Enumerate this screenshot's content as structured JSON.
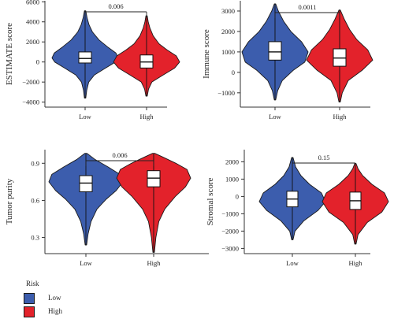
{
  "legend": {
    "title": "Risk",
    "items": [
      {
        "label": "Low",
        "color": "#3c5dad"
      },
      {
        "label": "High",
        "color": "#e3222b"
      }
    ]
  },
  "chart_data": [
    {
      "type": "violin",
      "ylabel": "ESTIMATE score",
      "categories": [
        "Low",
        "High"
      ],
      "yticks": [
        -4000,
        -2000,
        0,
        2000,
        4000,
        6000
      ],
      "ylim": [
        -4500,
        6100
      ],
      "pvalue": "0.006",
      "series": [
        {
          "name": "Low",
          "color": "#3c5dad",
          "min": -3600,
          "max": 5100,
          "q1": -100,
          "median": 350,
          "q3": 1000,
          "profile": [
            [
              -3600,
              0.02
            ],
            [
              -2800,
              0.05
            ],
            [
              -2000,
              0.11
            ],
            [
              -1300,
              0.28
            ],
            [
              -600,
              0.62
            ],
            [
              0,
              0.92
            ],
            [
              400,
              1.0
            ],
            [
              900,
              0.93
            ],
            [
              1500,
              0.68
            ],
            [
              2200,
              0.42
            ],
            [
              3000,
              0.22
            ],
            [
              3700,
              0.12
            ],
            [
              4400,
              0.06
            ],
            [
              5100,
              0.02
            ]
          ]
        },
        {
          "name": "High",
          "color": "#e3222b",
          "min": -3400,
          "max": 4600,
          "q1": -600,
          "median": 0,
          "q3": 700,
          "profile": [
            [
              -3400,
              0.02
            ],
            [
              -2700,
              0.06
            ],
            [
              -2000,
              0.16
            ],
            [
              -1300,
              0.5
            ],
            [
              -600,
              0.85
            ],
            [
              0,
              1.0
            ],
            [
              600,
              0.9
            ],
            [
              1200,
              0.62
            ],
            [
              1800,
              0.38
            ],
            [
              2600,
              0.2
            ],
            [
              3400,
              0.1
            ],
            [
              4000,
              0.05
            ],
            [
              4600,
              0.02
            ]
          ]
        }
      ]
    },
    {
      "type": "violin",
      "ylabel": "Immune score",
      "categories": [
        "Low",
        "High"
      ],
      "yticks": [
        -1000,
        0,
        1000,
        2000,
        3000
      ],
      "ylim": [
        -1700,
        3500
      ],
      "pvalue": "0.0011",
      "series": [
        {
          "name": "Low",
          "color": "#3c5dad",
          "min": -1350,
          "max": 3350,
          "q1": 600,
          "median": 1000,
          "q3": 1500,
          "profile": [
            [
              -1350,
              0.02
            ],
            [
              -900,
              0.08
            ],
            [
              -400,
              0.22
            ],
            [
              100,
              0.55
            ],
            [
              500,
              0.9
            ],
            [
              1000,
              1.0
            ],
            [
              1500,
              0.8
            ],
            [
              2000,
              0.48
            ],
            [
              2500,
              0.26
            ],
            [
              3000,
              0.1
            ],
            [
              3350,
              0.02
            ]
          ]
        },
        {
          "name": "High",
          "color": "#e3222b",
          "min": -1450,
          "max": 3050,
          "q1": 300,
          "median": 700,
          "q3": 1150,
          "profile": [
            [
              -1450,
              0.02
            ],
            [
              -1000,
              0.08
            ],
            [
              -400,
              0.26
            ],
            [
              100,
              0.68
            ],
            [
              600,
              1.0
            ],
            [
              1100,
              0.85
            ],
            [
              1600,
              0.52
            ],
            [
              2100,
              0.3
            ],
            [
              2600,
              0.14
            ],
            [
              3050,
              0.02
            ]
          ]
        }
      ]
    },
    {
      "type": "violin",
      "ylabel": "Tumor purity",
      "categories": [
        "Low",
        "High"
      ],
      "yticks": [
        0.3,
        0.6,
        0.9
      ],
      "ylim": [
        0.17,
        1.01
      ],
      "pvalue": "0.006",
      "series": [
        {
          "name": "Low",
          "color": "#3c5dad",
          "min": 0.24,
          "max": 0.98,
          "q1": 0.67,
          "median": 0.74,
          "q3": 0.8,
          "profile": [
            [
              0.24,
              0.02
            ],
            [
              0.33,
              0.06
            ],
            [
              0.43,
              0.14
            ],
            [
              0.53,
              0.3
            ],
            [
              0.61,
              0.55
            ],
            [
              0.68,
              0.82
            ],
            [
              0.75,
              1.0
            ],
            [
              0.81,
              0.92
            ],
            [
              0.87,
              0.6
            ],
            [
              0.93,
              0.25
            ],
            [
              0.98,
              0.03
            ]
          ]
        },
        {
          "name": "High",
          "color": "#e3222b",
          "min": 0.18,
          "max": 0.98,
          "q1": 0.71,
          "median": 0.78,
          "q3": 0.84,
          "profile": [
            [
              0.18,
              0.02
            ],
            [
              0.3,
              0.06
            ],
            [
              0.43,
              0.14
            ],
            [
              0.53,
              0.3
            ],
            [
              0.63,
              0.58
            ],
            [
              0.71,
              0.86
            ],
            [
              0.78,
              1.0
            ],
            [
              0.85,
              0.9
            ],
            [
              0.9,
              0.6
            ],
            [
              0.95,
              0.25
            ],
            [
              0.98,
              0.03
            ]
          ]
        }
      ]
    },
    {
      "type": "violin",
      "ylabel": "Stromal score",
      "categories": [
        "Low",
        "High"
      ],
      "yticks": [
        -3000,
        -2000,
        -1000,
        0,
        1000,
        2000
      ],
      "ylim": [
        -3300,
        2700
      ],
      "pvalue": "0.15",
      "series": [
        {
          "name": "Low",
          "color": "#3c5dad",
          "min": -2500,
          "max": 2250,
          "q1": -600,
          "median": -150,
          "q3": 300,
          "profile": [
            [
              -2500,
              0.02
            ],
            [
              -2000,
              0.08
            ],
            [
              -1400,
              0.35
            ],
            [
              -800,
              0.78
            ],
            [
              -300,
              1.0
            ],
            [
              200,
              0.88
            ],
            [
              700,
              0.52
            ],
            [
              1200,
              0.26
            ],
            [
              1700,
              0.1
            ],
            [
              2250,
              0.02
            ]
          ]
        },
        {
          "name": "High",
          "color": "#e3222b",
          "min": -2750,
          "max": 1900,
          "q1": -750,
          "median": -250,
          "q3": 250,
          "profile": [
            [
              -2750,
              0.02
            ],
            [
              -2200,
              0.08
            ],
            [
              -1500,
              0.36
            ],
            [
              -900,
              0.8
            ],
            [
              -300,
              1.0
            ],
            [
              200,
              0.88
            ],
            [
              700,
              0.5
            ],
            [
              1200,
              0.22
            ],
            [
              1600,
              0.08
            ],
            [
              1900,
              0.02
            ]
          ]
        }
      ]
    }
  ]
}
